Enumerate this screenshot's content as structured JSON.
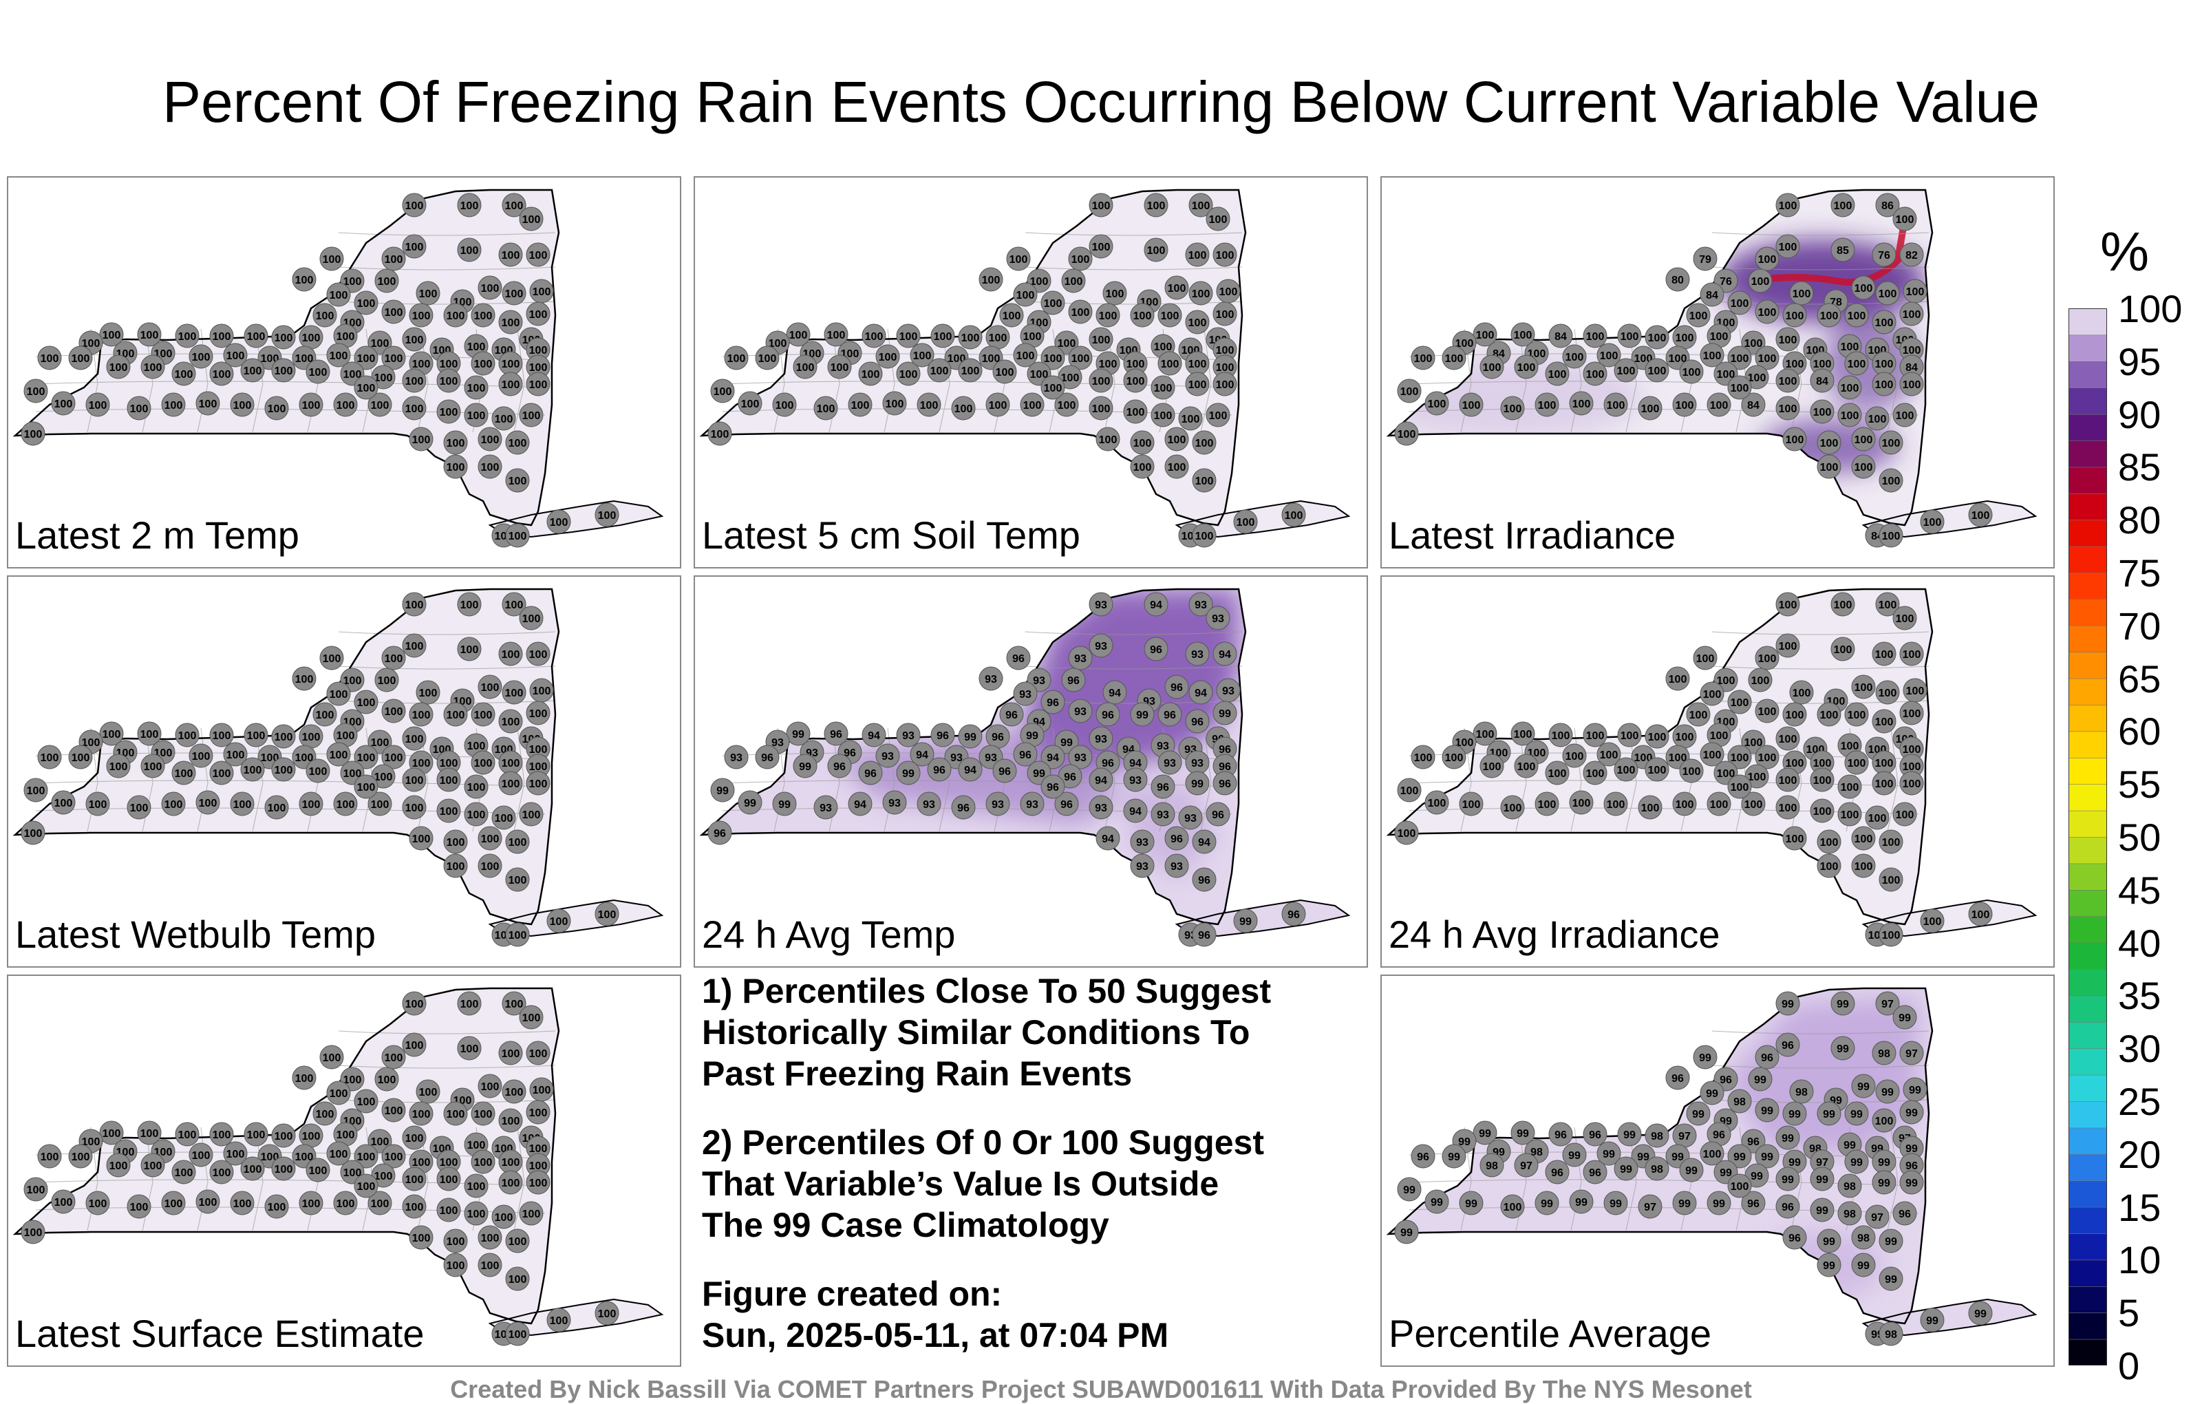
{
  "title": "Percent Of Freezing Rain Events Occurring Below Current Variable Value",
  "panels": [
    {
      "label": "Latest 2 m Temp",
      "mode": "uniform100"
    },
    {
      "label": "Latest 5 cm Soil Temp",
      "mode": "uniform100"
    },
    {
      "label": "Latest Irradiance",
      "mode": "irradiance"
    },
    {
      "label": "Latest Wetbulb Temp",
      "mode": "uniform100"
    },
    {
      "label": "24 h Avg Temp",
      "mode": "avgtemp"
    },
    {
      "label": "24 h Avg Irradiance",
      "mode": "uniform100"
    },
    {
      "label": "Latest Surface Estimate",
      "mode": "uniform100"
    },
    {
      "label": "Percentile Average",
      "mode": "average"
    }
  ],
  "notes": {
    "note1": "1) Percentiles Close To 50 Suggest\nHistorically Similar Conditions To\nPast Freezing Rain Events",
    "note2": "2) Percentiles Of 0 Or 100 Suggest\nThat Variable’s Value Is Outside\nThe 99 Case Climatology",
    "created": "Figure created on:\nSun, 2025-05-11, at 07:04 PM"
  },
  "credit": "Created By Nick Bassill Via COMET Partners Project SUBAWD001611 With Data Provided By The NYS Mesonet",
  "colorbar": {
    "unit": "%",
    "ticks": [
      "0",
      "5",
      "10",
      "15",
      "20",
      "25",
      "30",
      "35",
      "40",
      "45",
      "50",
      "55",
      "60",
      "65",
      "70",
      "75",
      "80",
      "85",
      "90",
      "95",
      "100"
    ]
  }
}
